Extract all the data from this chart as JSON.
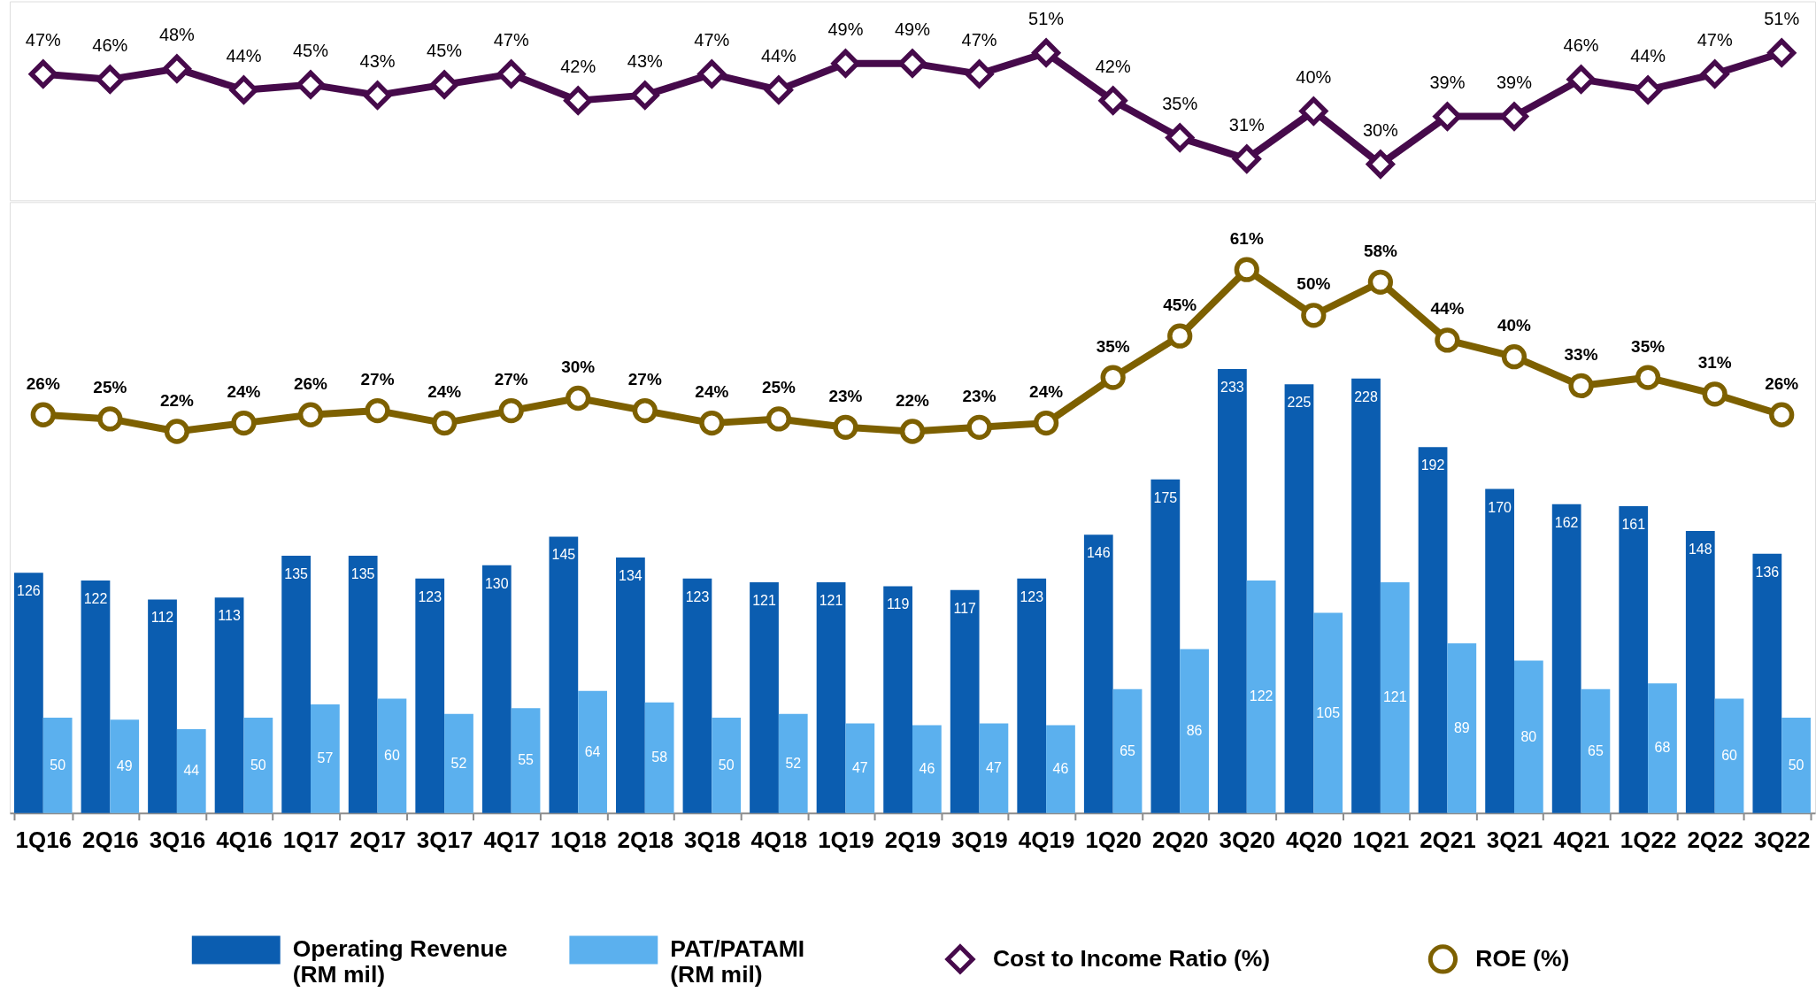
{
  "chart_data": [
    {
      "type": "line",
      "categories": [
        null,
        null,
        null,
        null,
        null,
        null,
        null,
        null,
        null,
        null,
        null,
        null,
        null,
        null,
        null,
        null,
        null,
        null,
        null,
        null,
        null,
        null,
        null,
        null,
        null,
        null,
        null
      ],
      "series": [
        {
          "name": "Cost to Income Ratio (%)",
          "marker": "diamond",
          "color": "#460a4b",
          "values": [
            47,
            46,
            48,
            44,
            45,
            43,
            45,
            47,
            42,
            43,
            47,
            44,
            49,
            49,
            47,
            51,
            42,
            35,
            31,
            40,
            30,
            39,
            39,
            46,
            44,
            47,
            51
          ],
          "value_labels": [
            "47%",
            "46%",
            "48%",
            "44%",
            "45%",
            "43%",
            "45%",
            "47%",
            "42%",
            "43%",
            "47%",
            "44%",
            "49%",
            "49%",
            "47%",
            "51%",
            "42%",
            "35%",
            "31%",
            "40%",
            "30%",
            "39%",
            "39%",
            "46%",
            "44%",
            "47%",
            "51%"
          ]
        }
      ],
      "ylim": [
        23.2,
        60.7
      ],
      "tick_labels": false,
      "legend": "bottom"
    },
    {
      "type": "bar",
      "categories": [
        "1Q16",
        "2Q16",
        "3Q16",
        "4Q16",
        "1Q17",
        "2Q17",
        "3Q17",
        "4Q17",
        "1Q18",
        "2Q18",
        "3Q18",
        "4Q18",
        "1Q19",
        "2Q19",
        "3Q19",
        "4Q19",
        "1Q20",
        "2Q20",
        "3Q20",
        "4Q20",
        "1Q21",
        "2Q21",
        "3Q21",
        "4Q21",
        "1Q22",
        "2Q22",
        "3Q22"
      ],
      "series": [
        {
          "name": "Operating Revenue (RM mil)",
          "color": "#0b5db0",
          "values": [
            126,
            122,
            112,
            113,
            135,
            135,
            123,
            130,
            145,
            134,
            123,
            121,
            121,
            119,
            117,
            123,
            146,
            175,
            233,
            225,
            228,
            192,
            170,
            162,
            161,
            148,
            136
          ]
        },
        {
          "name": "PAT/PATAMI (RM mil)",
          "color": "#5bb0ee",
          "values": [
            50,
            49,
            44,
            50,
            57,
            60,
            52,
            55,
            64,
            58,
            50,
            52,
            47,
            46,
            47,
            46,
            65,
            86,
            122,
            105,
            121,
            89,
            80,
            65,
            68,
            60,
            50
          ]
        },
        {
          "name": "ROE (%)",
          "type": "line",
          "axis": "y2",
          "marker": "circle",
          "color": "#7d6000",
          "values": [
            26,
            25,
            22,
            24,
            26,
            27,
            24,
            27,
            30,
            27,
            24,
            25,
            23,
            22,
            23,
            24,
            35,
            45,
            61,
            50,
            58,
            44,
            40,
            33,
            35,
            31,
            26
          ],
          "value_labels": [
            "26%",
            "25%",
            "22%",
            "24%",
            "26%",
            "27%",
            "24%",
            "27%",
            "30%",
            "27%",
            "24%",
            "25%",
            "23%",
            "22%",
            "23%",
            "24%",
            "35%",
            "45%",
            "61%",
            "50%",
            "58%",
            "44%",
            "40%",
            "33%",
            "35%",
            "31%",
            "26%"
          ]
        }
      ],
      "ylim": [
        0,
        320.6
      ],
      "y2lim": [
        -70,
        77.3
      ],
      "tick_labels": "x",
      "data_labels": true,
      "legend": "bottom",
      "grid": false
    }
  ]
}
